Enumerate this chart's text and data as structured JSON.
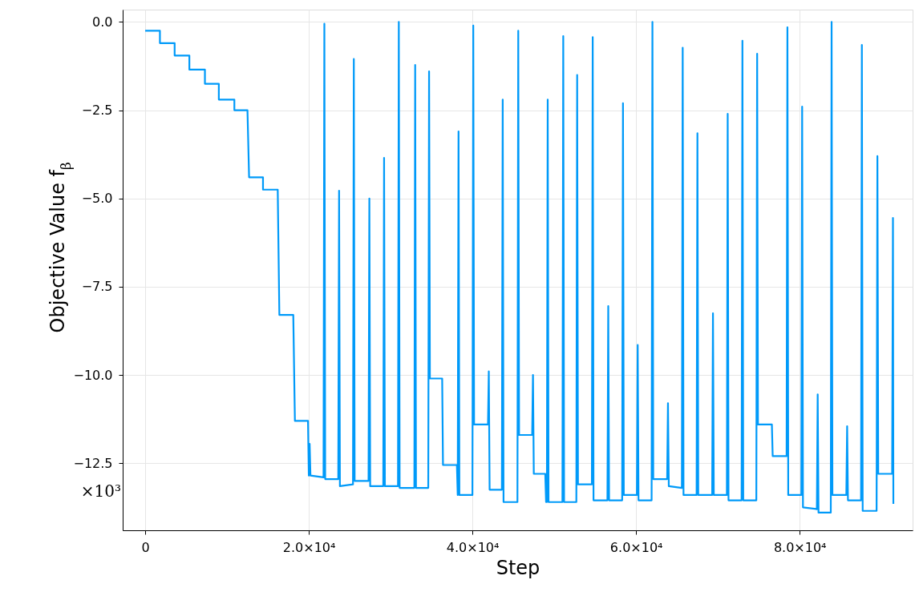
{
  "chart_data": {
    "type": "line",
    "xlabel": "Step",
    "ylabel": "Objective Value f$_{β}$",
    "annotations": [
      "×10³"
    ],
    "xlim": [
      -2750,
      93800
    ],
    "ylim": [
      -14.4,
      0.35
    ],
    "xticks": [
      {
        "value": 0,
        "label": "0"
      },
      {
        "value": 20000,
        "label": "2.0×10⁴"
      },
      {
        "value": 40000,
        "label": "4.0×10⁴"
      },
      {
        "value": 60000,
        "label": "6.0×10⁴"
      },
      {
        "value": 80000,
        "label": "8.0×10⁴"
      }
    ],
    "yticks": [
      {
        "value": 0,
        "label": "0.0"
      },
      {
        "value": -2.5,
        "label": "−2.5"
      },
      {
        "value": -5,
        "label": "−5.0"
      },
      {
        "value": -7.5,
        "label": "−7.5"
      },
      {
        "value": -10,
        "label": "−10.0"
      },
      {
        "value": -12.5,
        "label": "−12.5"
      }
    ],
    "grid": true,
    "marker": "none",
    "line_style": "solid",
    "series": [
      {
        "color": "#009af9",
        "x": [
          0,
          1800,
          1800,
          3600,
          3600,
          5400,
          5400,
          7300,
          7300,
          9000,
          9000,
          10900,
          10900,
          12500,
          12700,
          14400,
          14400,
          16200,
          16400,
          18100,
          18300,
          19900,
          20000,
          20100,
          20200,
          21800,
          21900,
          22000,
          23600,
          23700,
          23800,
          25400,
          25500,
          25600,
          27300,
          27400,
          27500,
          29100,
          29200,
          29300,
          30900,
          31000,
          31100,
          32900,
          33000,
          33100,
          34600,
          34700,
          34800,
          36300,
          36400,
          38100,
          38200,
          38300,
          38400,
          40000,
          40100,
          40200,
          41900,
          42000,
          42100,
          43600,
          43700,
          43800,
          45500,
          45600,
          45700,
          47300,
          47400,
          47500,
          48900,
          49000,
          49100,
          49200,
          49300,
          51000,
          51100,
          51200,
          52700,
          52800,
          52900,
          54600,
          54700,
          54800,
          56500,
          56600,
          56700,
          58300,
          58400,
          58500,
          60100,
          60200,
          60300,
          61900,
          62000,
          62100,
          63800,
          63900,
          64000,
          65600,
          65700,
          65800,
          67400,
          67500,
          67600,
          69300,
          69400,
          69500,
          71100,
          71200,
          71300,
          72900,
          73000,
          73100,
          74700,
          74800,
          74900,
          76600,
          76700,
          78400,
          78500,
          78600,
          80200,
          80300,
          80400,
          82100,
          82200,
          82300,
          83800,
          83900,
          84000,
          85700,
          85800,
          85900,
          87500,
          87600,
          87700,
          89400,
          89500,
          89600,
          91300,
          91400,
          91450
        ],
        "values": [
          -0.25,
          -0.25,
          -0.6,
          -0.6,
          -0.95,
          -0.95,
          -1.35,
          -1.35,
          -1.75,
          -1.75,
          -2.2,
          -2.2,
          -2.5,
          -2.5,
          -4.4,
          -4.4,
          -4.75,
          -4.75,
          -8.3,
          -8.3,
          -11.3,
          -11.3,
          -12.85,
          -11.95,
          -12.85,
          -12.9,
          -0.05,
          -12.95,
          -12.95,
          -4.78,
          -13.15,
          -13.1,
          -1.05,
          -13.0,
          -13.0,
          -5.0,
          -13.15,
          -13.15,
          -3.85,
          -13.15,
          -13.15,
          0.0,
          -13.2,
          -13.2,
          -1.22,
          -13.2,
          -13.2,
          -1.4,
          -10.1,
          -10.1,
          -12.55,
          -12.55,
          -13.4,
          -3.1,
          -13.4,
          -13.4,
          -0.1,
          -11.4,
          -11.4,
          -9.9,
          -13.25,
          -13.25,
          -2.2,
          -13.6,
          -13.6,
          -0.25,
          -11.7,
          -11.7,
          -10.0,
          -12.8,
          -12.8,
          -13.6,
          -13.6,
          -2.2,
          -13.6,
          -13.6,
          -0.4,
          -13.6,
          -13.6,
          -1.5,
          -13.1,
          -13.1,
          -0.43,
          -13.55,
          -13.55,
          -8.05,
          -13.55,
          -13.55,
          -2.3,
          -13.4,
          -13.4,
          -9.15,
          -13.55,
          -13.55,
          0.0,
          -12.95,
          -12.95,
          -10.8,
          -13.15,
          -13.2,
          -0.73,
          -13.4,
          -13.4,
          -3.15,
          -13.4,
          -13.4,
          -8.25,
          -13.4,
          -13.4,
          -2.6,
          -13.55,
          -13.55,
          -0.53,
          -13.55,
          -13.55,
          -0.9,
          -11.4,
          -11.4,
          -12.3,
          -12.3,
          -0.15,
          -13.4,
          -13.4,
          -2.4,
          -13.75,
          -13.8,
          -10.55,
          -13.9,
          -13.9,
          0.0,
          -13.4,
          -13.4,
          -11.45,
          -13.55,
          -13.55,
          -0.65,
          -13.85,
          -13.85,
          -3.8,
          -12.8,
          -12.8,
          -5.55,
          -13.65
        ]
      }
    ]
  }
}
